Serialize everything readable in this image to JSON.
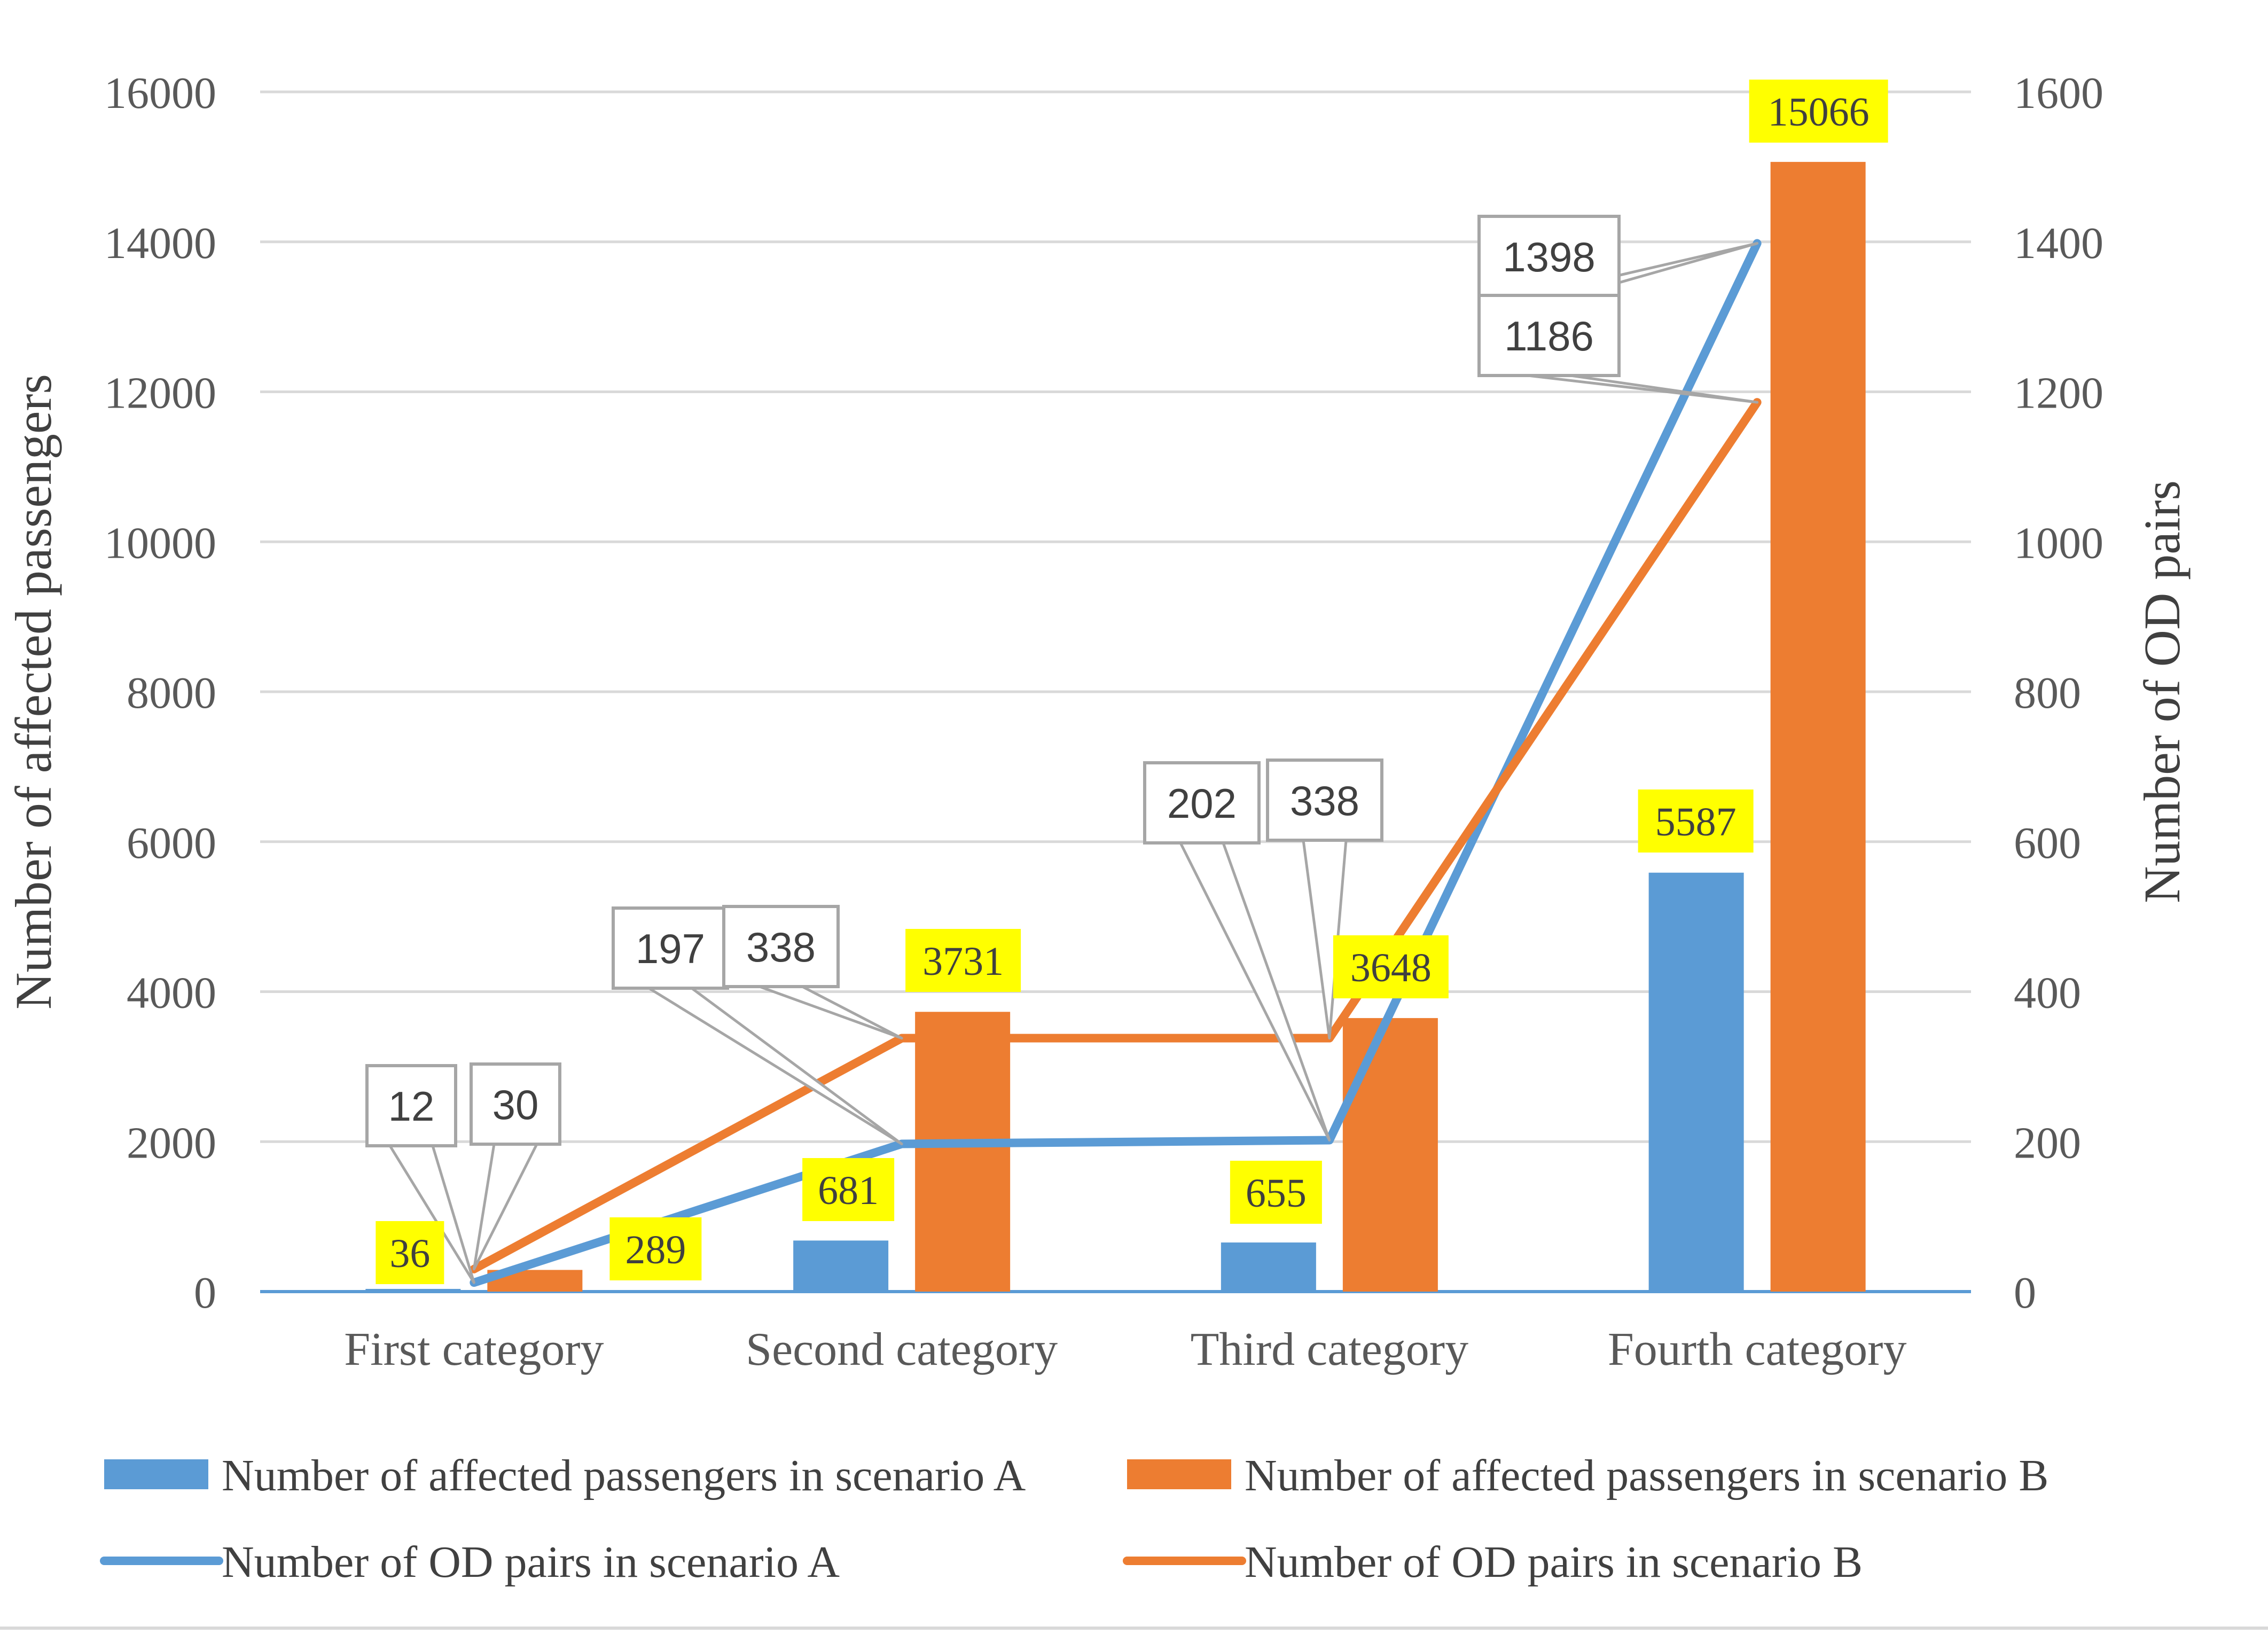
{
  "chart_data": {
    "type": "bar",
    "categories": [
      "First category",
      "Second category",
      "Third category",
      "Fourth category"
    ],
    "series": [
      {
        "name": "Number of affected passengers in scenario A",
        "kind": "bar",
        "axis": "left",
        "color": "#5b9bd5",
        "values": [
          36,
          681,
          655,
          5587
        ]
      },
      {
        "name": "Number of affected passengers in scenario B",
        "kind": "bar",
        "axis": "left",
        "color": "#ed7d31",
        "values": [
          289,
          3731,
          3648,
          15066
        ]
      },
      {
        "name": "Number of OD pairs in scenario A",
        "kind": "line",
        "axis": "right",
        "color": "#5b9bd5",
        "values": [
          12,
          197,
          202,
          1398
        ]
      },
      {
        "name": "Number of OD pairs in scenario B",
        "kind": "line",
        "axis": "right",
        "color": "#ed7d31",
        "values": [
          30,
          338,
          338,
          1186
        ]
      }
    ],
    "ylabel": "Number of affected passengers",
    "ylabel_right": "Number of OD pairs",
    "ylim": [
      0,
      16000
    ],
    "ylim_right": [
      0,
      1600
    ],
    "yticks": [
      "0",
      "2000",
      "4000",
      "6000",
      "8000",
      "10000",
      "12000",
      "14000",
      "16000"
    ],
    "yticks_right": [
      "0",
      "200",
      "400",
      "600",
      "800",
      "1000",
      "1200",
      "1400",
      "1600"
    ],
    "grid": true,
    "legend_position": "bottom",
    "bar_label_color": "#ffff00",
    "line_label_border_color": "#a6a6a6"
  }
}
